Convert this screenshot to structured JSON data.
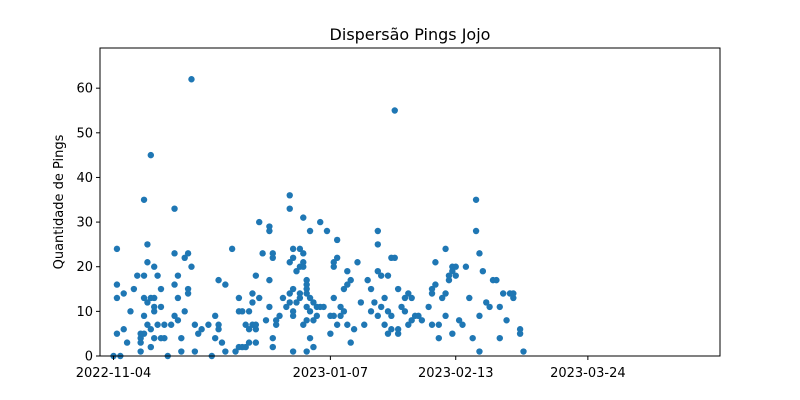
{
  "chart_data": {
    "type": "scatter",
    "title": "Dispersão Pings Jojo",
    "xlabel": "",
    "ylabel": "Quantidade de Pings",
    "x_axis_type": "date",
    "xlim": [
      "2022-10-31",
      "2023-05-02"
    ],
    "ylim": [
      0,
      69
    ],
    "x_ticks": [
      "2022-11-04",
      "2023-01-07",
      "2023-02-13",
      "2023-03-24"
    ],
    "y_ticks": [
      0,
      10,
      20,
      30,
      40,
      50,
      60
    ],
    "grid": false,
    "point_color": "#1f77b4",
    "points": [
      [
        "2022-11-04",
        0
      ],
      [
        "2022-11-05",
        24
      ],
      [
        "2022-11-05",
        16
      ],
      [
        "2022-11-05",
        13
      ],
      [
        "2022-11-05",
        5
      ],
      [
        "2022-11-06",
        0
      ],
      [
        "2022-11-07",
        14
      ],
      [
        "2022-11-07",
        6
      ],
      [
        "2022-11-08",
        3
      ],
      [
        "2022-11-09",
        10
      ],
      [
        "2022-11-10",
        15
      ],
      [
        "2022-11-11",
        18
      ],
      [
        "2022-11-12",
        5
      ],
      [
        "2022-11-12",
        4
      ],
      [
        "2022-11-12",
        3
      ],
      [
        "2022-11-12",
        1
      ],
      [
        "2022-11-13",
        18
      ],
      [
        "2022-11-13",
        35
      ],
      [
        "2022-11-13",
        13
      ],
      [
        "2022-11-13",
        9
      ],
      [
        "2022-11-13",
        5
      ],
      [
        "2022-11-14",
        21
      ],
      [
        "2022-11-14",
        25
      ],
      [
        "2022-11-14",
        12
      ],
      [
        "2022-11-14",
        7
      ],
      [
        "2022-11-15",
        45
      ],
      [
        "2022-11-15",
        13
      ],
      [
        "2022-11-15",
        6
      ],
      [
        "2022-11-15",
        2
      ],
      [
        "2022-11-16",
        20
      ],
      [
        "2022-11-16",
        13
      ],
      [
        "2022-11-16",
        11
      ],
      [
        "2022-11-16",
        10
      ],
      [
        "2022-11-16",
        4
      ],
      [
        "2022-11-17",
        18
      ],
      [
        "2022-11-17",
        7
      ],
      [
        "2022-11-18",
        15
      ],
      [
        "2022-11-18",
        11
      ],
      [
        "2022-11-18",
        4
      ],
      [
        "2022-11-19",
        7
      ],
      [
        "2022-11-19",
        4
      ],
      [
        "2022-11-20",
        0
      ],
      [
        "2022-11-21",
        7
      ],
      [
        "2022-11-22",
        33
      ],
      [
        "2022-11-22",
        23
      ],
      [
        "2022-11-22",
        16
      ],
      [
        "2022-11-22",
        9
      ],
      [
        "2022-11-23",
        18
      ],
      [
        "2022-11-23",
        13
      ],
      [
        "2022-11-23",
        8
      ],
      [
        "2022-11-24",
        4
      ],
      [
        "2022-11-24",
        1
      ],
      [
        "2022-11-25",
        10
      ],
      [
        "2022-11-25",
        22
      ],
      [
        "2022-11-26",
        23
      ],
      [
        "2022-11-26",
        15
      ],
      [
        "2022-11-26",
        14
      ],
      [
        "2022-11-27",
        62
      ],
      [
        "2022-11-27",
        20
      ],
      [
        "2022-11-28",
        7
      ],
      [
        "2022-11-28",
        1
      ],
      [
        "2022-11-29",
        5
      ],
      [
        "2022-11-30",
        6
      ],
      [
        "2022-12-02",
        7
      ],
      [
        "2022-12-03",
        0
      ],
      [
        "2022-12-04",
        4
      ],
      [
        "2022-12-04",
        9
      ],
      [
        "2022-12-05",
        7
      ],
      [
        "2022-12-05",
        6
      ],
      [
        "2022-12-05",
        17
      ],
      [
        "2022-12-06",
        3
      ],
      [
        "2022-12-07",
        1
      ],
      [
        "2022-12-07",
        16
      ],
      [
        "2022-12-09",
        24
      ],
      [
        "2022-12-10",
        1
      ],
      [
        "2022-12-11",
        2
      ],
      [
        "2022-12-11",
        13
      ],
      [
        "2022-12-11",
        10
      ],
      [
        "2022-12-12",
        2
      ],
      [
        "2022-12-12",
        10
      ],
      [
        "2022-12-13",
        7
      ],
      [
        "2022-12-13",
        2
      ],
      [
        "2022-12-14",
        3
      ],
      [
        "2022-12-14",
        6
      ],
      [
        "2022-12-14",
        10
      ],
      [
        "2022-12-15",
        7
      ],
      [
        "2022-12-15",
        12
      ],
      [
        "2022-12-15",
        14
      ],
      [
        "2022-12-16",
        3
      ],
      [
        "2022-12-16",
        7
      ],
      [
        "2022-12-16",
        6
      ],
      [
        "2022-12-16",
        18
      ],
      [
        "2022-12-17",
        13
      ],
      [
        "2022-12-17",
        30
      ],
      [
        "2022-12-18",
        23
      ],
      [
        "2022-12-19",
        8
      ],
      [
        "2022-12-20",
        29
      ],
      [
        "2022-12-20",
        28
      ],
      [
        "2022-12-20",
        17
      ],
      [
        "2022-12-20",
        11
      ],
      [
        "2022-12-21",
        23
      ],
      [
        "2022-12-21",
        22
      ],
      [
        "2022-12-21",
        4
      ],
      [
        "2022-12-21",
        2
      ],
      [
        "2022-12-22",
        7
      ],
      [
        "2022-12-22",
        8
      ],
      [
        "2022-12-23",
        9
      ],
      [
        "2022-12-24",
        13
      ],
      [
        "2022-12-25",
        11
      ],
      [
        "2022-12-26",
        36
      ],
      [
        "2022-12-26",
        33
      ],
      [
        "2022-12-26",
        21
      ],
      [
        "2022-12-26",
        14
      ],
      [
        "2022-12-26",
        12
      ],
      [
        "2022-12-27",
        24
      ],
      [
        "2022-12-27",
        22
      ],
      [
        "2022-12-27",
        15
      ],
      [
        "2022-12-27",
        10
      ],
      [
        "2022-12-27",
        9
      ],
      [
        "2022-12-27",
        1
      ],
      [
        "2022-12-28",
        19
      ],
      [
        "2022-12-28",
        12
      ],
      [
        "2022-12-29",
        24
      ],
      [
        "2022-12-29",
        20
      ],
      [
        "2022-12-29",
        14
      ],
      [
        "2022-12-29",
        13
      ],
      [
        "2022-12-30",
        31
      ],
      [
        "2022-12-30",
        23
      ],
      [
        "2022-12-30",
        21
      ],
      [
        "2022-12-30",
        20
      ],
      [
        "2022-12-30",
        7
      ],
      [
        "2022-12-31",
        17
      ],
      [
        "2022-12-31",
        16
      ],
      [
        "2022-12-31",
        15
      ],
      [
        "2022-12-31",
        14
      ],
      [
        "2022-12-31",
        11
      ],
      [
        "2022-12-31",
        8
      ],
      [
        "2022-12-31",
        1
      ],
      [
        "2023-01-01",
        28
      ],
      [
        "2023-01-01",
        13
      ],
      [
        "2023-01-01",
        10
      ],
      [
        "2023-01-01",
        4
      ],
      [
        "2023-01-02",
        12
      ],
      [
        "2023-01-02",
        8
      ],
      [
        "2023-01-02",
        2
      ],
      [
        "2023-01-03",
        11
      ],
      [
        "2023-01-03",
        9
      ],
      [
        "2023-01-04",
        30
      ],
      [
        "2023-01-04",
        11
      ],
      [
        "2023-01-05",
        11
      ],
      [
        "2023-01-06",
        28
      ],
      [
        "2023-01-07",
        9
      ],
      [
        "2023-01-07",
        5
      ],
      [
        "2023-01-08",
        21
      ],
      [
        "2023-01-08",
        20
      ],
      [
        "2023-01-08",
        13
      ],
      [
        "2023-01-08",
        9
      ],
      [
        "2023-01-09",
        26
      ],
      [
        "2023-01-09",
        22
      ],
      [
        "2023-01-09",
        7
      ],
      [
        "2023-01-10",
        11
      ],
      [
        "2023-01-10",
        9
      ],
      [
        "2023-01-11",
        10
      ],
      [
        "2023-01-11",
        15
      ],
      [
        "2023-01-12",
        19
      ],
      [
        "2023-01-12",
        16
      ],
      [
        "2023-01-12",
        7
      ],
      [
        "2023-01-13",
        17
      ],
      [
        "2023-01-13",
        3
      ],
      [
        "2023-01-14",
        6
      ],
      [
        "2023-01-15",
        21
      ],
      [
        "2023-01-16",
        12
      ],
      [
        "2023-01-17",
        7
      ],
      [
        "2023-01-18",
        17
      ],
      [
        "2023-01-19",
        10
      ],
      [
        "2023-01-19",
        15
      ],
      [
        "2023-01-20",
        12
      ],
      [
        "2023-01-21",
        9
      ],
      [
        "2023-01-21",
        19
      ],
      [
        "2023-01-21",
        28
      ],
      [
        "2023-01-21",
        25
      ],
      [
        "2023-01-22",
        18
      ],
      [
        "2023-01-22",
        11
      ],
      [
        "2023-01-23",
        13
      ],
      [
        "2023-01-23",
        7
      ],
      [
        "2023-01-24",
        10
      ],
      [
        "2023-01-24",
        5
      ],
      [
        "2023-01-24",
        18
      ],
      [
        "2023-01-25",
        9
      ],
      [
        "2023-01-25",
        22
      ],
      [
        "2023-01-25",
        6
      ],
      [
        "2023-01-26",
        55
      ],
      [
        "2023-01-26",
        22
      ],
      [
        "2023-01-27",
        15
      ],
      [
        "2023-01-27",
        6
      ],
      [
        "2023-01-27",
        5
      ],
      [
        "2023-01-28",
        11
      ],
      [
        "2023-01-29",
        13
      ],
      [
        "2023-01-29",
        10
      ],
      [
        "2023-01-30",
        14
      ],
      [
        "2023-01-30",
        7
      ],
      [
        "2023-01-31",
        13
      ],
      [
        "2023-01-31",
        8
      ],
      [
        "2023-02-01",
        9
      ],
      [
        "2023-02-02",
        9
      ],
      [
        "2023-02-03",
        8
      ],
      [
        "2023-02-05",
        11
      ],
      [
        "2023-02-06",
        15
      ],
      [
        "2023-02-06",
        14
      ],
      [
        "2023-02-06",
        7
      ],
      [
        "2023-02-07",
        21
      ],
      [
        "2023-02-07",
        16
      ],
      [
        "2023-02-08",
        7
      ],
      [
        "2023-02-08",
        4
      ],
      [
        "2023-02-09",
        13
      ],
      [
        "2023-02-10",
        24
      ],
      [
        "2023-02-10",
        14
      ],
      [
        "2023-02-10",
        9
      ],
      [
        "2023-02-11",
        18
      ],
      [
        "2023-02-11",
        17
      ],
      [
        "2023-02-12",
        20
      ],
      [
        "2023-02-12",
        19
      ],
      [
        "2023-02-12",
        5
      ],
      [
        "2023-02-13",
        18
      ],
      [
        "2023-02-13",
        20
      ],
      [
        "2023-02-14",
        8
      ],
      [
        "2023-02-15",
        7
      ],
      [
        "2023-02-16",
        20
      ],
      [
        "2023-02-17",
        13
      ],
      [
        "2023-02-18",
        4
      ],
      [
        "2023-02-19",
        35
      ],
      [
        "2023-02-19",
        28
      ],
      [
        "2023-02-20",
        23
      ],
      [
        "2023-02-20",
        9
      ],
      [
        "2023-02-20",
        1
      ],
      [
        "2023-02-21",
        19
      ],
      [
        "2023-02-22",
        12
      ],
      [
        "2023-02-23",
        11
      ],
      [
        "2023-02-24",
        17
      ],
      [
        "2023-02-25",
        17
      ],
      [
        "2023-02-26",
        4
      ],
      [
        "2023-02-26",
        11
      ],
      [
        "2023-02-27",
        14
      ],
      [
        "2023-02-28",
        8
      ],
      [
        "2023-03-01",
        14
      ],
      [
        "2023-03-02",
        13
      ],
      [
        "2023-03-02",
        14
      ],
      [
        "2023-03-04",
        6
      ],
      [
        "2023-03-04",
        5
      ],
      [
        "2023-03-05",
        1
      ]
    ]
  }
}
